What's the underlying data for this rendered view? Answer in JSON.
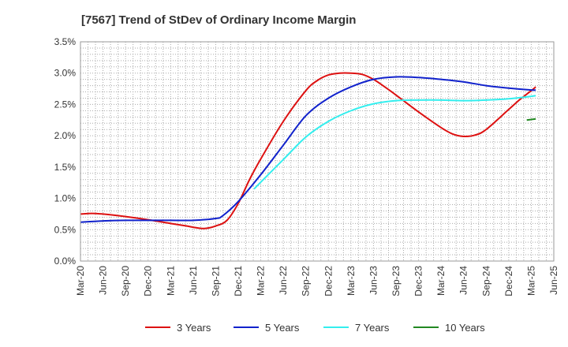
{
  "chart_data": {
    "type": "line",
    "title": "[7567]  Trend of StDev of Ordinary Income Margin",
    "xlabel": "",
    "ylabel": "",
    "ylim": [
      0,
      3.5
    ],
    "yticks": [
      "0.0%",
      "0.5%",
      "1.0%",
      "1.5%",
      "2.0%",
      "2.5%",
      "3.0%",
      "3.5%"
    ],
    "xticks": [
      "Mar-20",
      "Jun-20",
      "Sep-20",
      "Dec-20",
      "Mar-21",
      "Jun-21",
      "Sep-21",
      "Dec-21",
      "Mar-22",
      "Jun-22",
      "Sep-22",
      "Dec-22",
      "Mar-23",
      "Jun-23",
      "Sep-23",
      "Dec-23",
      "Mar-24",
      "Jun-24",
      "Sep-24",
      "Dec-24",
      "Mar-25",
      "Jun-25"
    ],
    "x_unit": "quarter index from Mar-20 (0) to Jun-25 (21)",
    "grid": true,
    "legend_position": "bottom",
    "series": [
      {
        "name": "3 Years",
        "color": "#dd1111",
        "points": [
          [
            0,
            0.75
          ],
          [
            0.5,
            0.76
          ],
          [
            1,
            0.75
          ],
          [
            2,
            0.71
          ],
          [
            3,
            0.66
          ],
          [
            4,
            0.6
          ],
          [
            4.7,
            0.56
          ],
          [
            5,
            0.54
          ],
          [
            5.5,
            0.52
          ],
          [
            6,
            0.56
          ],
          [
            6.5,
            0.65
          ],
          [
            7,
            0.92
          ],
          [
            7.5,
            1.3
          ],
          [
            8,
            1.63
          ],
          [
            9,
            2.23
          ],
          [
            10,
            2.72
          ],
          [
            10.5,
            2.88
          ],
          [
            11,
            2.97
          ],
          [
            11.5,
            3.0
          ],
          [
            12,
            3.0
          ],
          [
            12.5,
            2.98
          ],
          [
            13,
            2.9
          ],
          [
            13.5,
            2.78
          ],
          [
            14,
            2.65
          ],
          [
            15,
            2.38
          ],
          [
            16,
            2.13
          ],
          [
            16.5,
            2.03
          ],
          [
            17,
            1.99
          ],
          [
            17.5,
            2.01
          ],
          [
            18,
            2.1
          ],
          [
            19,
            2.42
          ],
          [
            19.5,
            2.58
          ],
          [
            20,
            2.72
          ],
          [
            20.2,
            2.78
          ]
        ]
      },
      {
        "name": "5 Years",
        "color": "#1122cc",
        "points": [
          [
            0,
            0.62
          ],
          [
            1,
            0.64
          ],
          [
            2,
            0.65
          ],
          [
            3,
            0.65
          ],
          [
            4,
            0.65
          ],
          [
            5,
            0.65
          ],
          [
            6,
            0.68
          ],
          [
            6.3,
            0.72
          ],
          [
            7,
            0.95
          ],
          [
            8,
            1.38
          ],
          [
            9,
            1.85
          ],
          [
            10,
            2.32
          ],
          [
            11,
            2.6
          ],
          [
            12,
            2.78
          ],
          [
            13,
            2.9
          ],
          [
            14,
            2.94
          ],
          [
            15,
            2.93
          ],
          [
            16,
            2.9
          ],
          [
            17,
            2.86
          ],
          [
            18,
            2.8
          ],
          [
            19,
            2.76
          ],
          [
            20,
            2.73
          ],
          [
            20.2,
            2.73
          ]
        ]
      },
      {
        "name": "7 Years",
        "color": "#33eeee",
        "points": [
          [
            7.7,
            1.15
          ],
          [
            8,
            1.26
          ],
          [
            9,
            1.62
          ],
          [
            10,
            1.98
          ],
          [
            11,
            2.23
          ],
          [
            12,
            2.4
          ],
          [
            13,
            2.51
          ],
          [
            14,
            2.56
          ],
          [
            15,
            2.57
          ],
          [
            16,
            2.57
          ],
          [
            17,
            2.56
          ],
          [
            18,
            2.57
          ],
          [
            19,
            2.59
          ],
          [
            20,
            2.63
          ],
          [
            20.2,
            2.64
          ]
        ]
      },
      {
        "name": "10 Years",
        "color": "#228822",
        "points": [
          [
            19.8,
            2.25
          ],
          [
            20.2,
            2.27
          ]
        ]
      }
    ]
  }
}
